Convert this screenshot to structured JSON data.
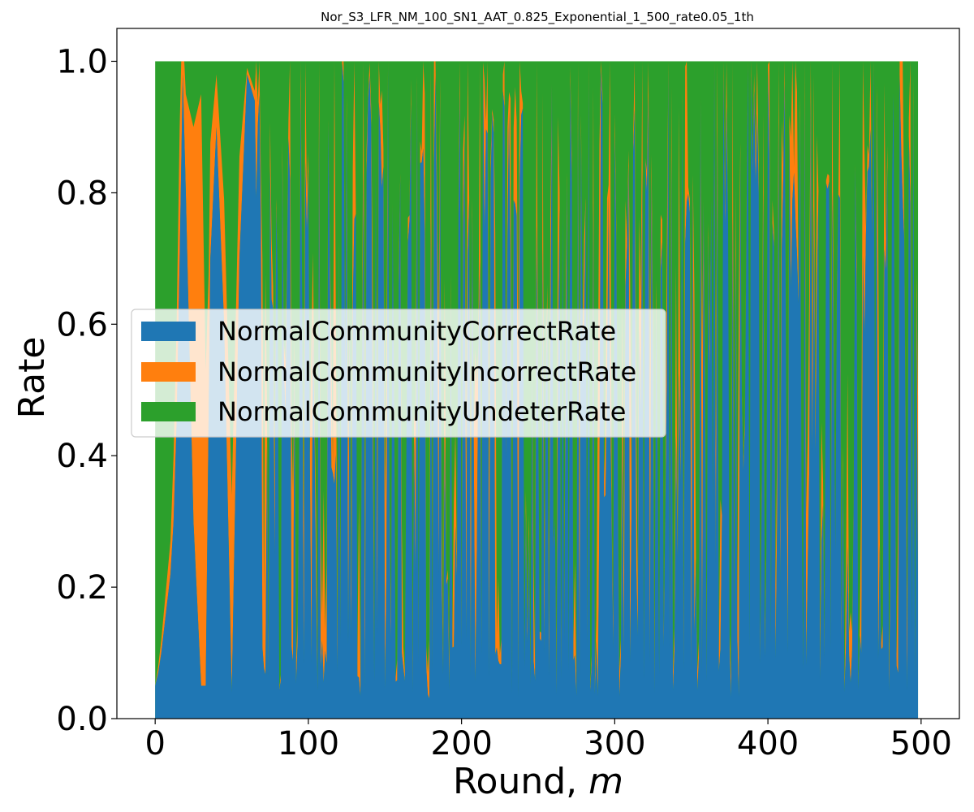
{
  "chart_data": {
    "type": "area",
    "stacked": true,
    "title": "Nor_S3_LFR_NM_100_SN1_AAT_0.825_Exponential_1_500_rate0.05_1th",
    "xlabel": "Round,",
    "xlabel_var": "m",
    "ylabel": "Rate",
    "xlim": [
      -25,
      525
    ],
    "ylim": [
      0,
      1.05
    ],
    "x_range": [
      0,
      498
    ],
    "xticks": [
      "0",
      "100",
      "200",
      "300",
      "400",
      "500"
    ],
    "xtick_values": [
      0,
      100,
      200,
      300,
      400,
      500
    ],
    "yticks": [
      "0.0",
      "0.2",
      "0.4",
      "0.6",
      "0.8",
      "1.0"
    ],
    "ytick_values": [
      0,
      0.2,
      0.4,
      0.6,
      0.7999,
      1.0
    ],
    "grid": false,
    "legend_position": "center-left",
    "series": [
      {
        "name": "NormalCommunityCorrectRate",
        "color": "#1f77b4"
      },
      {
        "name": "NormalCommunityIncorrectRate",
        "color": "#ff7f0e"
      },
      {
        "name": "NormalCommunityUndeterRate",
        "color": "#2ca02c"
      }
    ],
    "keypoints": {
      "correct": [
        [
          0,
          0.05
        ],
        [
          2,
          0.07
        ],
        [
          4,
          0.1
        ],
        [
          6,
          0.14
        ],
        [
          8,
          0.18
        ],
        [
          10,
          0.22
        ],
        [
          12,
          0.3
        ],
        [
          14,
          0.45
        ],
        [
          16,
          0.7
        ],
        [
          18,
          0.98
        ],
        [
          20,
          0.8
        ],
        [
          25,
          0.3
        ],
        [
          30,
          0.05
        ],
        [
          33,
          0.05
        ],
        [
          36,
          0.7
        ],
        [
          40,
          0.9
        ],
        [
          45,
          0.6
        ],
        [
          50,
          0.04
        ],
        [
          55,
          0.7
        ],
        [
          60,
          0.98
        ],
        [
          70,
          0.9
        ],
        [
          80,
          0.95
        ],
        [
          90,
          0.4
        ],
        [
          100,
          0.8
        ],
        [
          110,
          0.1
        ],
        [
          120,
          0.9
        ],
        [
          150,
          0.3
        ],
        [
          170,
          0.5
        ],
        [
          200,
          0.4
        ],
        [
          250,
          0.6
        ],
        [
          263,
          0.06
        ],
        [
          275,
          0.5
        ],
        [
          300,
          0.5
        ],
        [
          330,
          0.05
        ],
        [
          350,
          0.6
        ],
        [
          400,
          0.5
        ],
        [
          410,
          0.04
        ],
        [
          450,
          0.5
        ],
        [
          475,
          0.06
        ],
        [
          498,
          0.4
        ]
      ],
      "incorrect": [
        [
          0,
          0.0
        ],
        [
          10,
          0.05
        ],
        [
          16,
          0.2
        ],
        [
          20,
          0.15
        ],
        [
          25,
          0.6
        ],
        [
          30,
          0.9
        ],
        [
          35,
          0.2
        ],
        [
          40,
          0.08
        ],
        [
          50,
          0.3
        ],
        [
          60,
          0.01
        ],
        [
          100,
          0.05
        ],
        [
          150,
          0.05
        ],
        [
          175,
          0.45
        ],
        [
          200,
          0.05
        ],
        [
          263,
          0.7
        ],
        [
          300,
          0.05
        ],
        [
          400,
          0.05
        ],
        [
          498,
          0.5
        ]
      ]
    }
  }
}
